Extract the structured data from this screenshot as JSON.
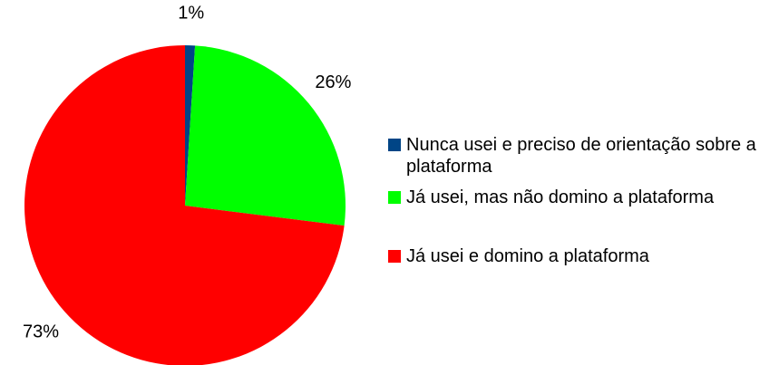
{
  "chart_data": {
    "type": "pie",
    "categories": [
      "Nunca usei e preciso de orientação sobre a plataforma",
      "Já usei, mas não domino a plataforma",
      "Já usei e domino a plataforma"
    ],
    "values": [
      1,
      26,
      73
    ],
    "value_labels": [
      "1%",
      "26%",
      "73%"
    ],
    "colors": [
      "#004586",
      "#00ff00",
      "#ff0000"
    ],
    "legend": "right"
  }
}
